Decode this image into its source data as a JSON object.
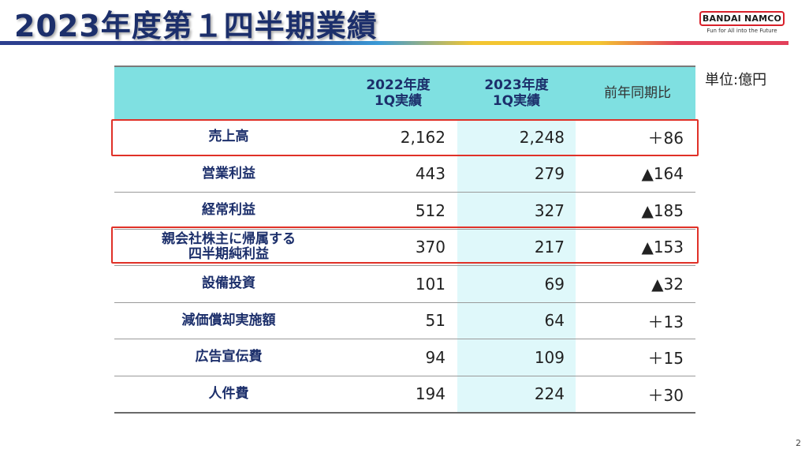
{
  "title": "2023年度第１四半期業績",
  "logo": {
    "brand": "BANDAI NAMCO",
    "tagline": "Fun for All into the Future"
  },
  "unit": "単位:億円",
  "table": {
    "headers": {
      "col2022": "2022年度\n1Q実績",
      "col2023": "2023年度\n1Q実績",
      "compare": "前年同期比"
    },
    "rows": [
      {
        "label": "売上高",
        "v2022": "2,162",
        "v2023": "2,248",
        "diff": "＋86"
      },
      {
        "label": "営業利益",
        "v2022": "443",
        "v2023": "279",
        "diff": "▲164"
      },
      {
        "label": "経常利益",
        "v2022": "512",
        "v2023": "327",
        "diff": "▲185"
      },
      {
        "label": "親会社株主に帰属する\n四半期純利益",
        "v2022": "370",
        "v2023": "217",
        "diff": "▲153"
      },
      {
        "label": "設備投資",
        "v2022": "101",
        "v2023": "69",
        "diff": "▲32"
      },
      {
        "label": "減価償却実施額",
        "v2022": "51",
        "v2023": "64",
        "diff": "＋13"
      },
      {
        "label": "広告宣伝費",
        "v2022": "94",
        "v2023": "109",
        "diff": "＋15"
      },
      {
        "label": "人件費",
        "v2022": "194",
        "v2023": "224",
        "diff": "＋30"
      }
    ]
  },
  "page_number": "2",
  "colors": {
    "title": "#1c2f6b",
    "header_bg": "#7fe0e1",
    "highlight_col": "#dff8fa",
    "emphasis_box": "#e03128"
  }
}
